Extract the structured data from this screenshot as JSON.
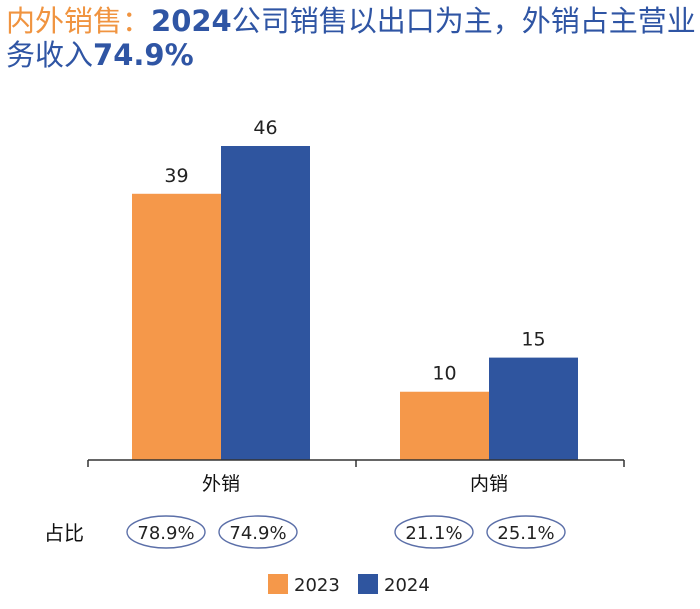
{
  "title": {
    "highlight": "内外销售：",
    "pre": "",
    "bold_year": "2024",
    "mid": "公司销售以出口为主，外销占主营业务收入",
    "bold_pct": "74.9%"
  },
  "share_label": "占比",
  "chart_data": {
    "type": "bar",
    "categories": [
      "外销",
      "内销"
    ],
    "series": [
      {
        "name": "2023",
        "values": [
          39,
          10
        ],
        "color": "#f5984a"
      },
      {
        "name": "2024",
        "values": [
          46,
          15
        ],
        "color": "#2f559f"
      }
    ],
    "share": [
      [
        "78.9%",
        "74.9%"
      ],
      [
        "21.1%",
        "25.1%"
      ]
    ],
    "ylim": [
      0,
      46
    ],
    "grid": false,
    "legend": "bottom-center"
  },
  "colors": {
    "axis": "#333333",
    "ellipse": "#5b6fa8",
    "title_blue": "#2f55a4",
    "title_orange": "#f09440"
  }
}
